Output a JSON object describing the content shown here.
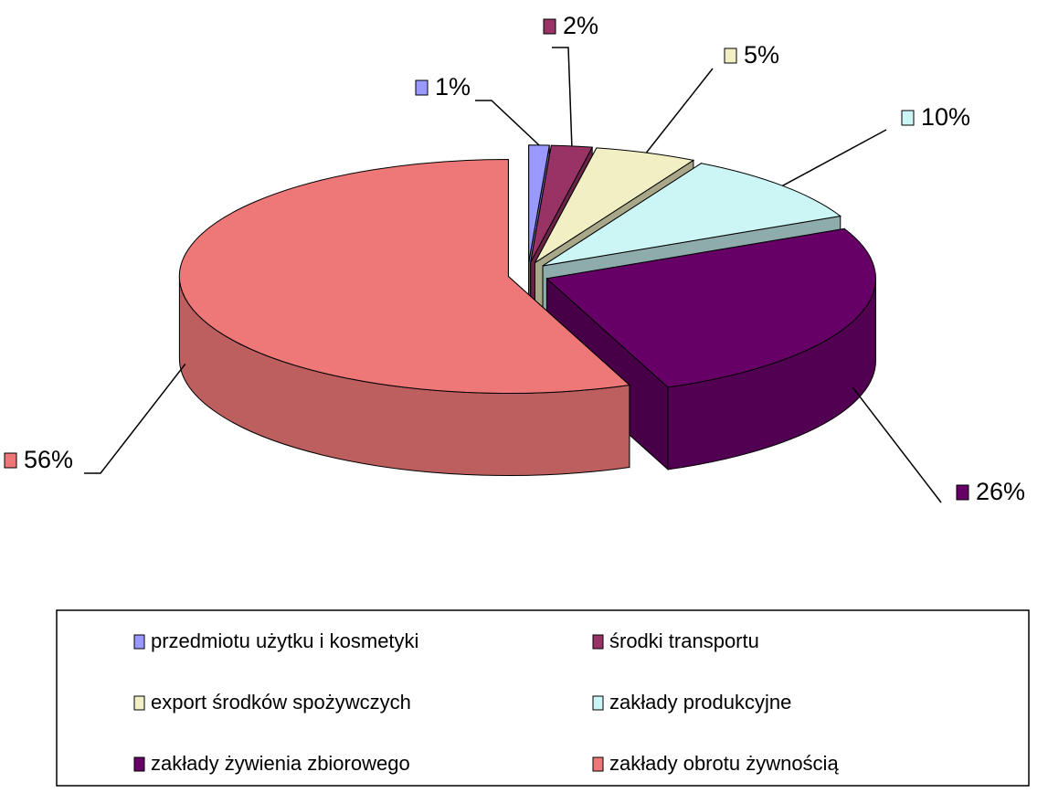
{
  "chart_data": {
    "type": "pie",
    "categories": [
      "przedmiotu użytku i kosmetyki",
      "środki transportu",
      "export środków spożywczych",
      "zakłady produkcyjne",
      "zakłady żywienia zbiorowego",
      "zakłady obrotu żywnością"
    ],
    "values": [
      1,
      2,
      5,
      10,
      26,
      56
    ],
    "value_labels": [
      "1%",
      "2%",
      "5%",
      "10%",
      "26%",
      "56%"
    ],
    "colors": [
      "#9999ff",
      "#993366",
      "#f2efc4",
      "#ccf5f5",
      "#660066",
      "#ee7777"
    ]
  }
}
